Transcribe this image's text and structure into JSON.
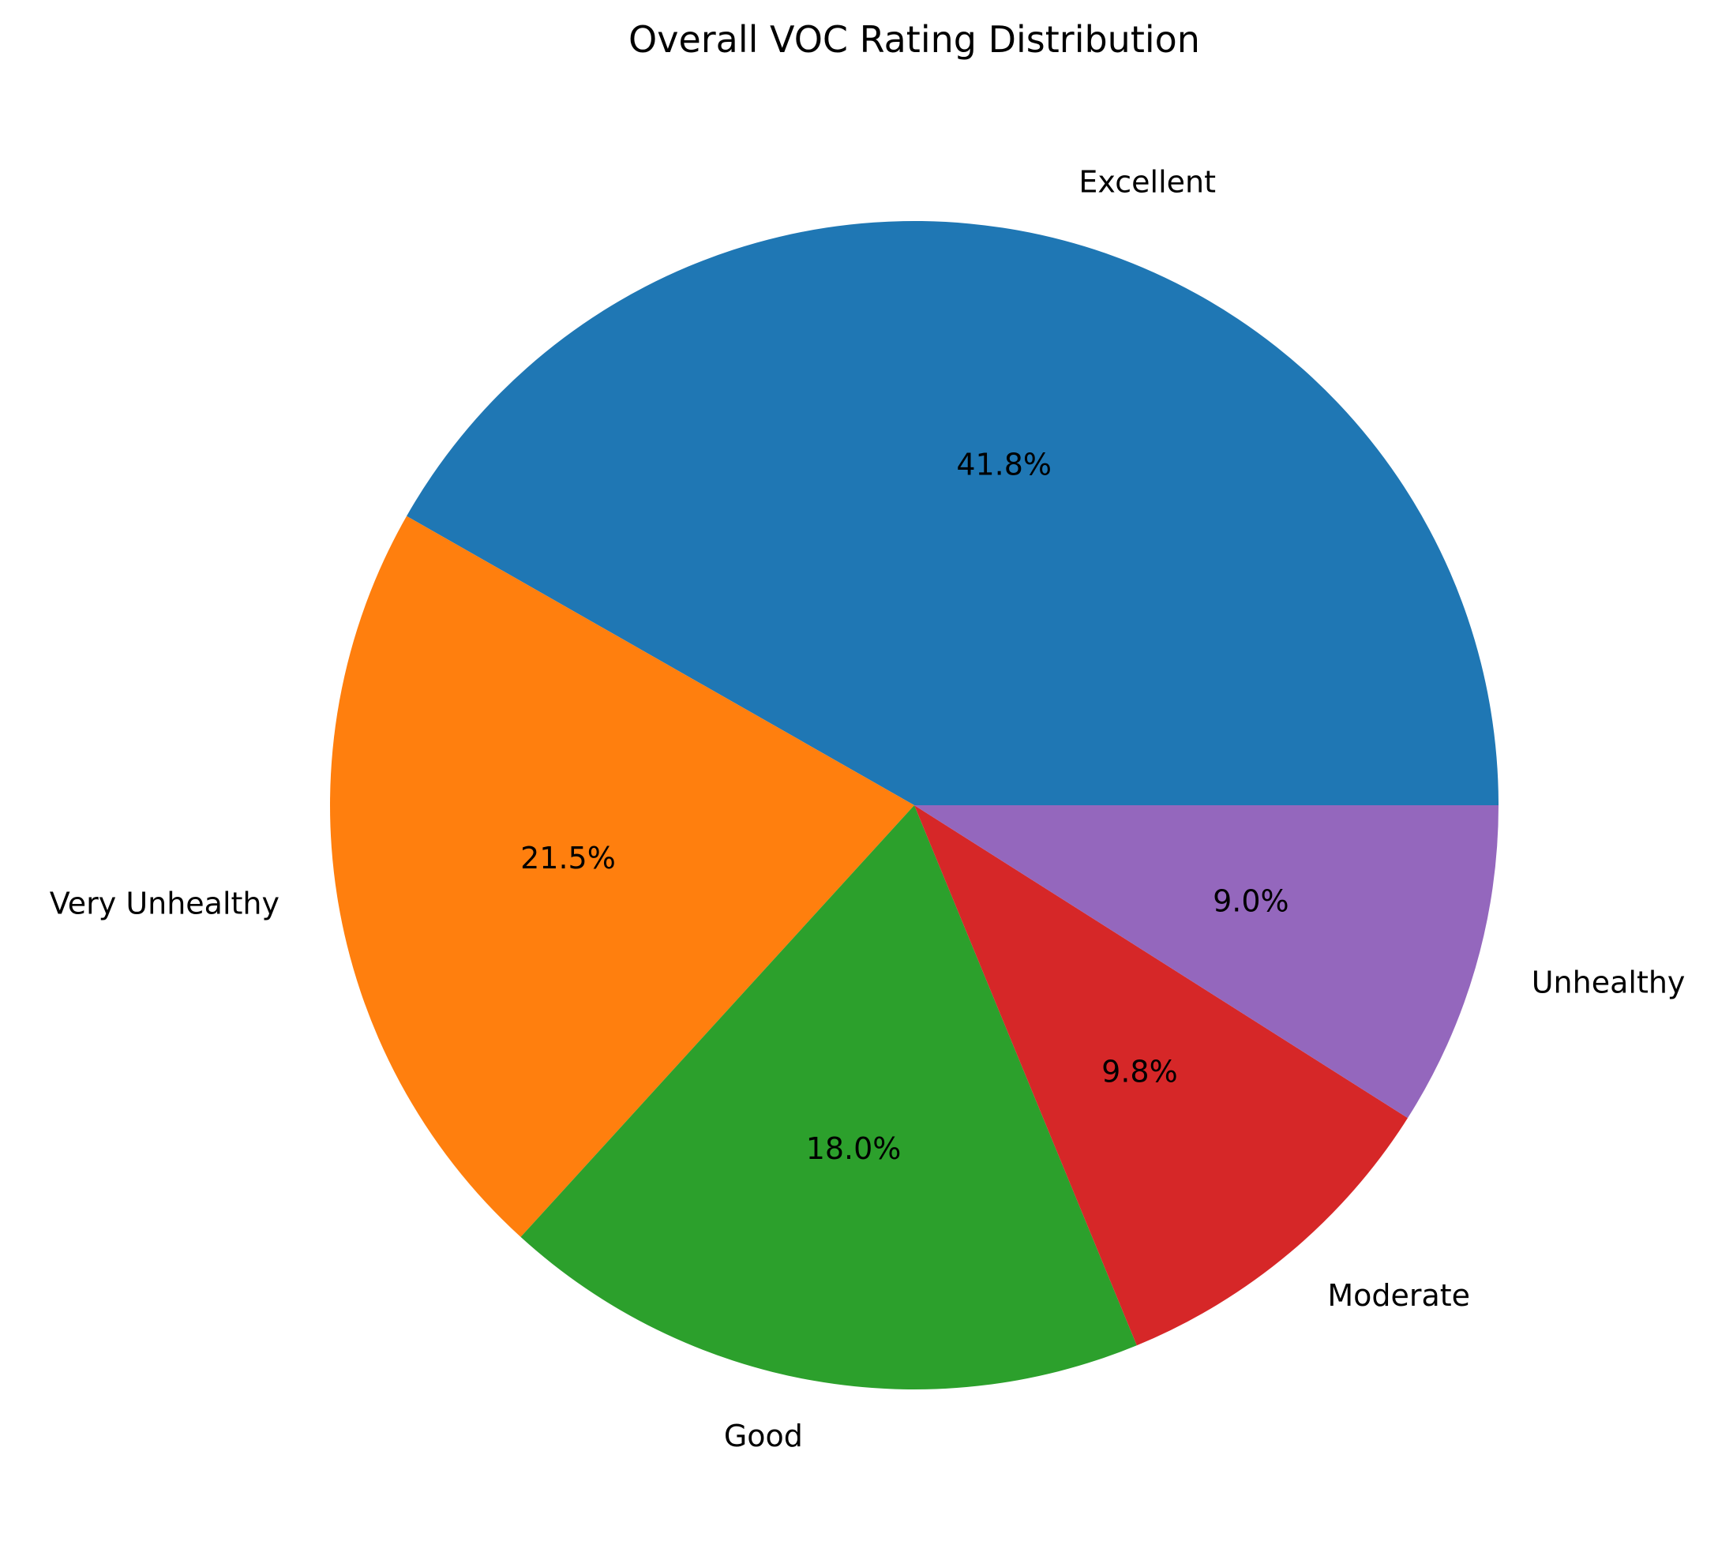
{
  "chart_data": {
    "type": "pie",
    "title": "Overall VOC Rating Distribution",
    "start_angle_deg": 0,
    "direction": "counterclockwise",
    "slices": [
      {
        "label": "Excellent",
        "value": 41.8,
        "pct_text": "41.8%",
        "color": "#1f77b4"
      },
      {
        "label": "Very Unhealthy",
        "value": 21.5,
        "pct_text": "21.5%",
        "color": "#ff7f0e"
      },
      {
        "label": "Good",
        "value": 18.0,
        "pct_text": "18.0%",
        "color": "#2ca02c"
      },
      {
        "label": "Moderate",
        "value": 9.8,
        "pct_text": "9.8%",
        "color": "#d62728"
      },
      {
        "label": "Unhealthy",
        "value": 9.0,
        "pct_text": "9.0%",
        "color": "#9467bd"
      }
    ]
  }
}
